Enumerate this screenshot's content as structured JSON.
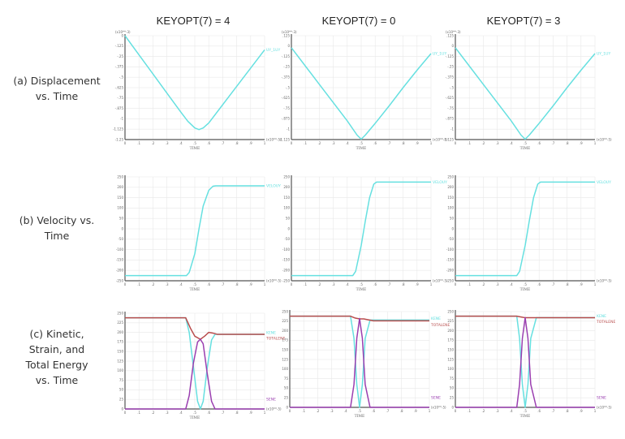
{
  "columns": [
    {
      "label": "KEYOPT(7) = 4"
    },
    {
      "label": "KEYOPT(7) =  0"
    },
    {
      "label": "KEYOPT(7) = 3"
    }
  ],
  "rows": [
    {
      "label_lines": [
        "(a) Displacement",
        "vs. Time"
      ]
    },
    {
      "label_lines": [
        "(b) Velocity vs.",
        "Time"
      ]
    },
    {
      "label_lines": [
        "(c) Kinetic,",
        "Strain, and",
        "Total Energy",
        "vs. Time"
      ]
    }
  ],
  "colors": {
    "cyan": "#66e0e0",
    "red": "#b84c4c",
    "purple": "#9a3fb0",
    "grid": "#e8e8e8",
    "axis": "#555555"
  },
  "chart_data": [
    {
      "id": "disp-k4",
      "type": "line",
      "row": 0,
      "col": 0,
      "title": "",
      "xlabel": "TIME",
      "x_multiplier": "(x10**-5)",
      "y_multiplier": "(x10**-3)",
      "xlim": [
        0,
        1
      ],
      "ylim": [
        -1.25,
        0
      ],
      "yticks": [
        0,
        -0.125,
        -0.25,
        -0.375,
        -0.5,
        -0.625,
        -0.75,
        -0.875,
        -1,
        -1.125,
        -1.25
      ],
      "ytick_labels": [
        "0",
        "-.125",
        "-.25",
        "-.375",
        "-.5",
        "-.625",
        "-.75",
        "-.875",
        "-1",
        "-1.125",
        "-1.25"
      ],
      "xticks": [
        0,
        0.1,
        0.2,
        0.3,
        0.4,
        0.5,
        0.6,
        0.7,
        0.8,
        0.9,
        1
      ],
      "xtick_labels": [
        "0",
        ".1",
        ".2",
        ".3",
        ".4",
        ".5",
        ".6",
        ".7",
        ".8",
        ".9",
        "1"
      ],
      "series": [
        {
          "name": "UY_1UY",
          "color": "cyan",
          "x": [
            0,
            0.1,
            0.2,
            0.3,
            0.4,
            0.45,
            0.5,
            0.53,
            0.56,
            0.6,
            0.7,
            0.8,
            0.9,
            1
          ],
          "y": [
            0,
            -0.23,
            -0.46,
            -0.69,
            -0.92,
            -1.03,
            -1.11,
            -1.13,
            -1.11,
            -1.05,
            -0.83,
            -0.61,
            -0.39,
            -0.17
          ]
        }
      ]
    },
    {
      "id": "disp-k0",
      "type": "line",
      "row": 0,
      "col": 1,
      "title": "",
      "xlabel": "TIME",
      "x_multiplier": "(x10**-5)",
      "y_multiplier": "(x10**-3)",
      "xlim": [
        0,
        1
      ],
      "ylim": [
        -1.125,
        0.125
      ],
      "yticks": [
        0.125,
        0,
        -0.125,
        -0.25,
        -0.375,
        -0.5,
        -0.625,
        -0.75,
        -0.875,
        -1,
        -1.125
      ],
      "ytick_labels": [
        ".125",
        "0",
        "-.125",
        "-.25",
        "-.375",
        "-.5",
        "-.625",
        "-.75",
        "-.875",
        "-1",
        "-1.125"
      ],
      "xticks": [
        0,
        0.1,
        0.2,
        0.3,
        0.4,
        0.5,
        0.6,
        0.7,
        0.8,
        0.9,
        1
      ],
      "xtick_labels": [
        "0",
        ".1",
        ".2",
        ".3",
        ".4",
        ".5",
        ".6",
        ".7",
        ".8",
        ".9",
        "1"
      ],
      "series": [
        {
          "name": "UY_1UY",
          "color": "cyan",
          "x": [
            0,
            0.1,
            0.2,
            0.3,
            0.4,
            0.47,
            0.5,
            0.53,
            0.6,
            0.7,
            0.8,
            0.9,
            1
          ],
          "y": [
            -0.02,
            -0.24,
            -0.46,
            -0.68,
            -0.9,
            -1.07,
            -1.12,
            -1.07,
            -0.93,
            -0.72,
            -0.5,
            -0.29,
            -0.09
          ]
        }
      ]
    },
    {
      "id": "disp-k3",
      "type": "line",
      "row": 0,
      "col": 2,
      "title": "",
      "xlabel": "TIME",
      "x_multiplier": "(x10**-5)",
      "y_multiplier": "(x10**-3)",
      "xlim": [
        0,
        1
      ],
      "ylim": [
        -1.125,
        0.125
      ],
      "yticks": [
        0.125,
        0,
        -0.125,
        -0.25,
        -0.375,
        -0.5,
        -0.625,
        -0.75,
        -0.875,
        -1,
        -1.125
      ],
      "ytick_labels": [
        ".125",
        "0",
        "-.125",
        "-.25",
        "-.375",
        "-.5",
        "-.625",
        "-.75",
        "-.875",
        "-1",
        "-1.125"
      ],
      "xticks": [
        0,
        0.1,
        0.2,
        0.3,
        0.4,
        0.5,
        0.6,
        0.7,
        0.8,
        0.9,
        1
      ],
      "xtick_labels": [
        "0",
        ".1",
        ".2",
        ".3",
        ".4",
        ".5",
        ".6",
        ".7",
        ".8",
        ".9",
        "1"
      ],
      "series": [
        {
          "name": "UY_1UY",
          "color": "cyan",
          "x": [
            0,
            0.1,
            0.2,
            0.3,
            0.4,
            0.47,
            0.5,
            0.53,
            0.6,
            0.7,
            0.8,
            0.9,
            1
          ],
          "y": [
            -0.02,
            -0.24,
            -0.46,
            -0.68,
            -0.9,
            -1.07,
            -1.12,
            -1.07,
            -0.93,
            -0.72,
            -0.5,
            -0.29,
            -0.09
          ]
        }
      ]
    },
    {
      "id": "vel-k4",
      "type": "line",
      "row": 1,
      "col": 0,
      "title": "",
      "xlabel": "TIME",
      "x_multiplier": "(x10**-5)",
      "y_multiplier": "",
      "xlim": [
        0,
        1
      ],
      "ylim": [
        -250,
        250
      ],
      "yticks": [
        250,
        200,
        150,
        100,
        50,
        0,
        -50,
        -100,
        -150,
        -200,
        -250
      ],
      "ytick_labels": [
        "250",
        "200",
        "150",
        "100",
        "50",
        "0",
        "-50",
        "-100",
        "-150",
        "-200",
        "-250"
      ],
      "xticks": [
        0,
        0.1,
        0.2,
        0.3,
        0.4,
        0.5,
        0.6,
        0.7,
        0.8,
        0.9,
        1
      ],
      "xtick_labels": [
        "0",
        ".1",
        ".2",
        ".3",
        ".4",
        ".5",
        ".6",
        ".7",
        ".8",
        ".9",
        "1"
      ],
      "series": [
        {
          "name": "VELOUY",
          "color": "cyan",
          "x": [
            0,
            0.44,
            0.46,
            0.5,
            0.53,
            0.56,
            0.6,
            0.63,
            0.65,
            1
          ],
          "y": [
            -225,
            -225,
            -210,
            -120,
            0,
            110,
            185,
            205,
            207,
            207
          ]
        }
      ]
    },
    {
      "id": "vel-k0",
      "type": "line",
      "row": 1,
      "col": 1,
      "title": "",
      "xlabel": "TIME",
      "x_multiplier": "(x10**-5)",
      "y_multiplier": "",
      "xlim": [
        0,
        1
      ],
      "ylim": [
        -250,
        250
      ],
      "yticks": [
        250,
        200,
        150,
        100,
        50,
        0,
        -50,
        -100,
        -150,
        -200,
        -250
      ],
      "ytick_labels": [
        "250",
        "200",
        "150",
        "100",
        "50",
        "0",
        "-50",
        "-100",
        "-150",
        "-200",
        "-250"
      ],
      "xticks": [
        0,
        0.1,
        0.2,
        0.3,
        0.4,
        0.5,
        0.6,
        0.7,
        0.8,
        0.9,
        1
      ],
      "xtick_labels": [
        "0",
        ".1",
        ".2",
        ".3",
        ".4",
        ".5",
        ".6",
        ".7",
        ".8",
        ".9",
        "1"
      ],
      "series": [
        {
          "name": "VELOUY",
          "color": "cyan",
          "x": [
            0,
            0.44,
            0.46,
            0.5,
            0.53,
            0.56,
            0.59,
            0.61,
            1
          ],
          "y": [
            -225,
            -225,
            -205,
            -80,
            40,
            150,
            215,
            225,
            225
          ]
        }
      ]
    },
    {
      "id": "vel-k3",
      "type": "line",
      "row": 1,
      "col": 2,
      "title": "",
      "xlabel": "TIME",
      "x_multiplier": "(x10**-5)",
      "y_multiplier": "",
      "xlim": [
        0,
        1
      ],
      "ylim": [
        -250,
        250
      ],
      "yticks": [
        250,
        200,
        150,
        100,
        50,
        0,
        -50,
        -100,
        -150,
        -200,
        -250
      ],
      "ytick_labels": [
        "250",
        "200",
        "150",
        "100",
        "50",
        "0",
        "-50",
        "-100",
        "-150",
        "-200",
        "-250"
      ],
      "xticks": [
        0,
        0.1,
        0.2,
        0.3,
        0.4,
        0.5,
        0.6,
        0.7,
        0.8,
        0.9,
        1
      ],
      "xtick_labels": [
        "0",
        ".1",
        ".2",
        ".3",
        ".4",
        ".5",
        ".6",
        ".7",
        ".8",
        ".9",
        "1"
      ],
      "series": [
        {
          "name": "VELOUY",
          "color": "cyan",
          "x": [
            0,
            0.44,
            0.46,
            0.5,
            0.53,
            0.56,
            0.59,
            0.61,
            1
          ],
          "y": [
            -225,
            -225,
            -205,
            -80,
            40,
            150,
            215,
            225,
            225
          ]
        }
      ]
    },
    {
      "id": "energy-k4",
      "type": "line",
      "row": 2,
      "col": 0,
      "title": "",
      "xlabel": "TIME",
      "x_multiplier": "(x10**-5)",
      "y_multiplier": "",
      "xlim": [
        0,
        1
      ],
      "ylim": [
        0,
        250
      ],
      "yticks": [
        250,
        225,
        200,
        175,
        150,
        125,
        100,
        75,
        50,
        25,
        0
      ],
      "ytick_labels": [
        "250",
        "225",
        "200",
        "175",
        "150",
        "125",
        "100",
        "75",
        "50",
        "25",
        "0"
      ],
      "xticks": [
        0,
        0.1,
        0.2,
        0.3,
        0.4,
        0.5,
        0.6,
        0.7,
        0.8,
        0.9,
        1
      ],
      "xtick_labels": [
        "0",
        ".1",
        ".2",
        ".3",
        ".4",
        ".5",
        ".6",
        ".7",
        ".8",
        ".9",
        "1"
      ],
      "series": [
        {
          "name": "KENE",
          "color": "cyan",
          "x": [
            0,
            0.435,
            0.46,
            0.49,
            0.52,
            0.54,
            0.56,
            0.59,
            0.62,
            0.645,
            1
          ],
          "y": [
            238,
            238,
            200,
            110,
            20,
            0,
            20,
            110,
            180,
            195,
            195
          ]
        },
        {
          "name": "TOTALENE",
          "color": "red",
          "x": [
            0,
            0.435,
            0.47,
            0.5,
            0.54,
            0.57,
            0.6,
            0.63,
            0.66,
            1
          ],
          "y": [
            238,
            238,
            210,
            190,
            182,
            190,
            200,
            198,
            195,
            195
          ]
        },
        {
          "name": "SENE",
          "color": "purple",
          "x": [
            0,
            0.435,
            0.46,
            0.49,
            0.52,
            0.54,
            0.56,
            0.59,
            0.62,
            0.645,
            1
          ],
          "y": [
            0,
            0,
            35,
            120,
            175,
            182,
            170,
            90,
            20,
            0,
            0
          ]
        }
      ]
    },
    {
      "id": "energy-k0",
      "type": "line",
      "row": 2,
      "col": 1,
      "title": "",
      "xlabel": "TIME",
      "x_multiplier": "(x10**-5)",
      "y_multiplier": "",
      "xlim": [
        0,
        1
      ],
      "ylim": [
        0,
        250
      ],
      "yticks": [
        250,
        225,
        200,
        175,
        150,
        125,
        100,
        75,
        50,
        25,
        0
      ],
      "ytick_labels": [
        "250",
        "225",
        "200",
        "175",
        "150",
        "125",
        "100",
        "75",
        "50",
        "25",
        "0"
      ],
      "xticks": [
        0,
        0.1,
        0.2,
        0.3,
        0.4,
        0.5,
        0.6,
        0.7,
        0.8,
        0.9,
        1
      ],
      "xtick_labels": [
        "0",
        ".1",
        ".2",
        ".3",
        ".4",
        ".5",
        ".6",
        ".7",
        ".8",
        ".9",
        "1"
      ],
      "series": [
        {
          "name": "KENE",
          "color": "cyan",
          "x": [
            0,
            0.435,
            0.46,
            0.48,
            0.5,
            0.52,
            0.54,
            0.575,
            0.6,
            1
          ],
          "y": [
            238,
            238,
            180,
            60,
            0,
            60,
            180,
            228,
            228,
            228
          ]
        },
        {
          "name": "TOTALENE",
          "color": "red",
          "x": [
            0,
            0.435,
            0.47,
            0.5,
            0.53,
            0.57,
            0.6,
            1
          ],
          "y": [
            238,
            238,
            233,
            231,
            231,
            228,
            226,
            226
          ]
        },
        {
          "name": "SENE",
          "color": "purple",
          "x": [
            0,
            0.435,
            0.46,
            0.48,
            0.5,
            0.52,
            0.54,
            0.575,
            0.6,
            1
          ],
          "y": [
            0,
            0,
            60,
            180,
            232,
            180,
            60,
            0,
            0,
            0
          ]
        }
      ]
    },
    {
      "id": "energy-k3",
      "type": "line",
      "row": 2,
      "col": 2,
      "title": "",
      "xlabel": "TIME",
      "x_multiplier": "(x10**-5)",
      "y_multiplier": "",
      "xlim": [
        0,
        1
      ],
      "ylim": [
        0,
        250
      ],
      "yticks": [
        250,
        225,
        200,
        175,
        150,
        125,
        100,
        75,
        50,
        25,
        0
      ],
      "ytick_labels": [
        "250",
        "225",
        "200",
        "175",
        "150",
        "125",
        "100",
        "75",
        "50",
        "25",
        "0"
      ],
      "xticks": [
        0,
        0.1,
        0.2,
        0.3,
        0.4,
        0.5,
        0.6,
        0.7,
        0.8,
        0.9,
        1
      ],
      "xtick_labels": [
        "0",
        ".1",
        ".2",
        ".3",
        ".4",
        ".5",
        ".6",
        ".7",
        ".8",
        ".9",
        "1"
      ],
      "series": [
        {
          "name": "KENE",
          "color": "cyan",
          "x": [
            0,
            0.44,
            0.46,
            0.48,
            0.5,
            0.52,
            0.54,
            0.58,
            0.6,
            1
          ],
          "y": [
            238,
            238,
            180,
            60,
            0,
            60,
            180,
            234,
            234,
            234
          ]
        },
        {
          "name": "TOTALENE",
          "color": "red",
          "x": [
            0,
            0.44,
            0.47,
            0.5,
            0.53,
            0.6,
            1
          ],
          "y": [
            238,
            238,
            236,
            234,
            234,
            234,
            234
          ]
        },
        {
          "name": "SENE",
          "color": "purple",
          "x": [
            0,
            0.44,
            0.46,
            0.48,
            0.5,
            0.52,
            0.54,
            0.58,
            0.6,
            1
          ],
          "y": [
            0,
            0,
            60,
            180,
            234,
            180,
            60,
            0,
            0,
            0
          ]
        }
      ]
    }
  ]
}
